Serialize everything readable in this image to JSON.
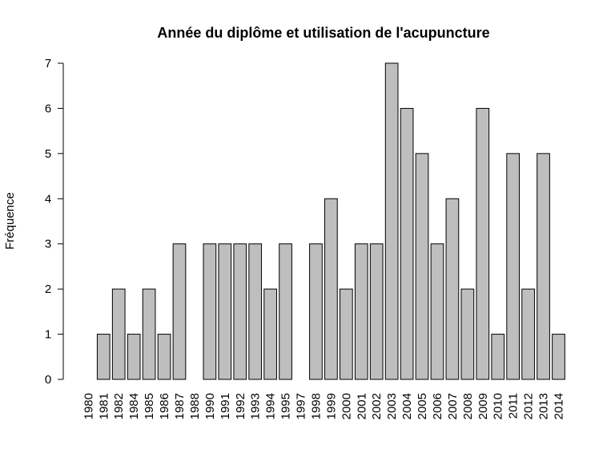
{
  "chart_data": {
    "type": "bar",
    "title": "Année du diplôme et utilisation de l'acupuncture",
    "xlabel": "",
    "ylabel": "Fréquence",
    "categories": [
      "1980",
      "1981",
      "1982",
      "1984",
      "1985",
      "1986",
      "1987",
      "1988",
      "1990",
      "1991",
      "1992",
      "1993",
      "1994",
      "1995",
      "1997",
      "1998",
      "1999",
      "2000",
      "2001",
      "2002",
      "2003",
      "2004",
      "2005",
      "2006",
      "2007",
      "2008",
      "2009",
      "2010",
      "2011",
      "2012",
      "2013",
      "2014"
    ],
    "values": [
      0,
      1,
      2,
      1,
      2,
      1,
      3,
      0,
      3,
      3,
      3,
      3,
      2,
      3,
      0,
      3,
      4,
      2,
      3,
      3,
      7,
      6,
      5,
      3,
      4,
      2,
      6,
      1,
      5,
      2,
      5,
      1
    ],
    "yticks": [
      0,
      1,
      2,
      3,
      4,
      5,
      6,
      7
    ],
    "ylim": [
      0,
      7
    ],
    "grid": false,
    "colors": {
      "bar_fill": "#bebebe",
      "bar_stroke": "#000000"
    }
  }
}
